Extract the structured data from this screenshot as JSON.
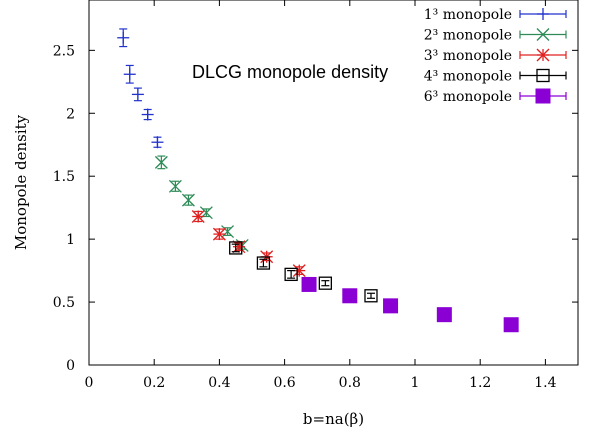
{
  "chart_data": {
    "type": "scatter",
    "title": "",
    "annotation": "DLCG monopole density",
    "xlabel": "b=na(β)",
    "ylabel": "Monopole density",
    "xlim": [
      0,
      1.5
    ],
    "ylim": [
      0,
      2.9
    ],
    "x_ticks": [
      "0",
      "0.2",
      "0.4",
      "0.6",
      "0.8",
      "1",
      "1.2",
      "1.4"
    ],
    "y_ticks": [
      "0",
      "0.5",
      "1",
      "1.5",
      "2",
      "2.5"
    ],
    "grid": false,
    "legend_position": "top-right",
    "series": [
      {
        "name": "1³ monopole",
        "color": "#2233cc",
        "marker": "plus",
        "points": [
          {
            "x": 0.105,
            "y": 2.6,
            "err": 0.07
          },
          {
            "x": 0.125,
            "y": 2.31,
            "err": 0.07
          },
          {
            "x": 0.15,
            "y": 2.15,
            "err": 0.05
          },
          {
            "x": 0.18,
            "y": 1.99,
            "err": 0.04
          },
          {
            "x": 0.21,
            "y": 1.77,
            "err": 0.04
          }
        ]
      },
      {
        "name": "2³ monopole",
        "color": "#2e8b57",
        "marker": "cross",
        "points": [
          {
            "x": 0.222,
            "y": 1.61,
            "err": 0.05
          },
          {
            "x": 0.265,
            "y": 1.42,
            "err": 0.04
          },
          {
            "x": 0.305,
            "y": 1.31,
            "err": 0.04
          },
          {
            "x": 0.36,
            "y": 1.21,
            "err": 0.03
          },
          {
            "x": 0.425,
            "y": 1.06,
            "err": 0.03
          },
          {
            "x": 0.47,
            "y": 0.95,
            "err": 0.03
          }
        ]
      },
      {
        "name": "3³ monopole",
        "color": "#e02020",
        "marker": "star",
        "points": [
          {
            "x": 0.335,
            "y": 1.18,
            "err": 0.04
          },
          {
            "x": 0.4,
            "y": 1.04,
            "err": 0.04
          },
          {
            "x": 0.46,
            "y": 0.94,
            "err": 0.03
          },
          {
            "x": 0.545,
            "y": 0.86,
            "err": 0.03
          },
          {
            "x": 0.645,
            "y": 0.75,
            "err": 0.03
          }
        ]
      },
      {
        "name": "4³ monopole",
        "color": "#000000",
        "marker": "open-square",
        "points": [
          {
            "x": 0.45,
            "y": 0.93,
            "err": 0.03
          },
          {
            "x": 0.535,
            "y": 0.81,
            "err": 0.03
          },
          {
            "x": 0.62,
            "y": 0.72,
            "err": 0.03
          },
          {
            "x": 0.725,
            "y": 0.65,
            "err": 0.02
          },
          {
            "x": 0.865,
            "y": 0.55,
            "err": 0.02
          }
        ]
      },
      {
        "name": "6³ monopole",
        "color": "#8a00d4",
        "marker": "filled-square",
        "points": [
          {
            "x": 0.675,
            "y": 0.64,
            "err": 0.02
          },
          {
            "x": 0.8,
            "y": 0.55,
            "err": 0.02
          },
          {
            "x": 0.925,
            "y": 0.47,
            "err": 0.02
          },
          {
            "x": 1.09,
            "y": 0.4,
            "err": 0.02
          },
          {
            "x": 1.295,
            "y": 0.32,
            "err": 0.02
          }
        ]
      }
    ]
  }
}
